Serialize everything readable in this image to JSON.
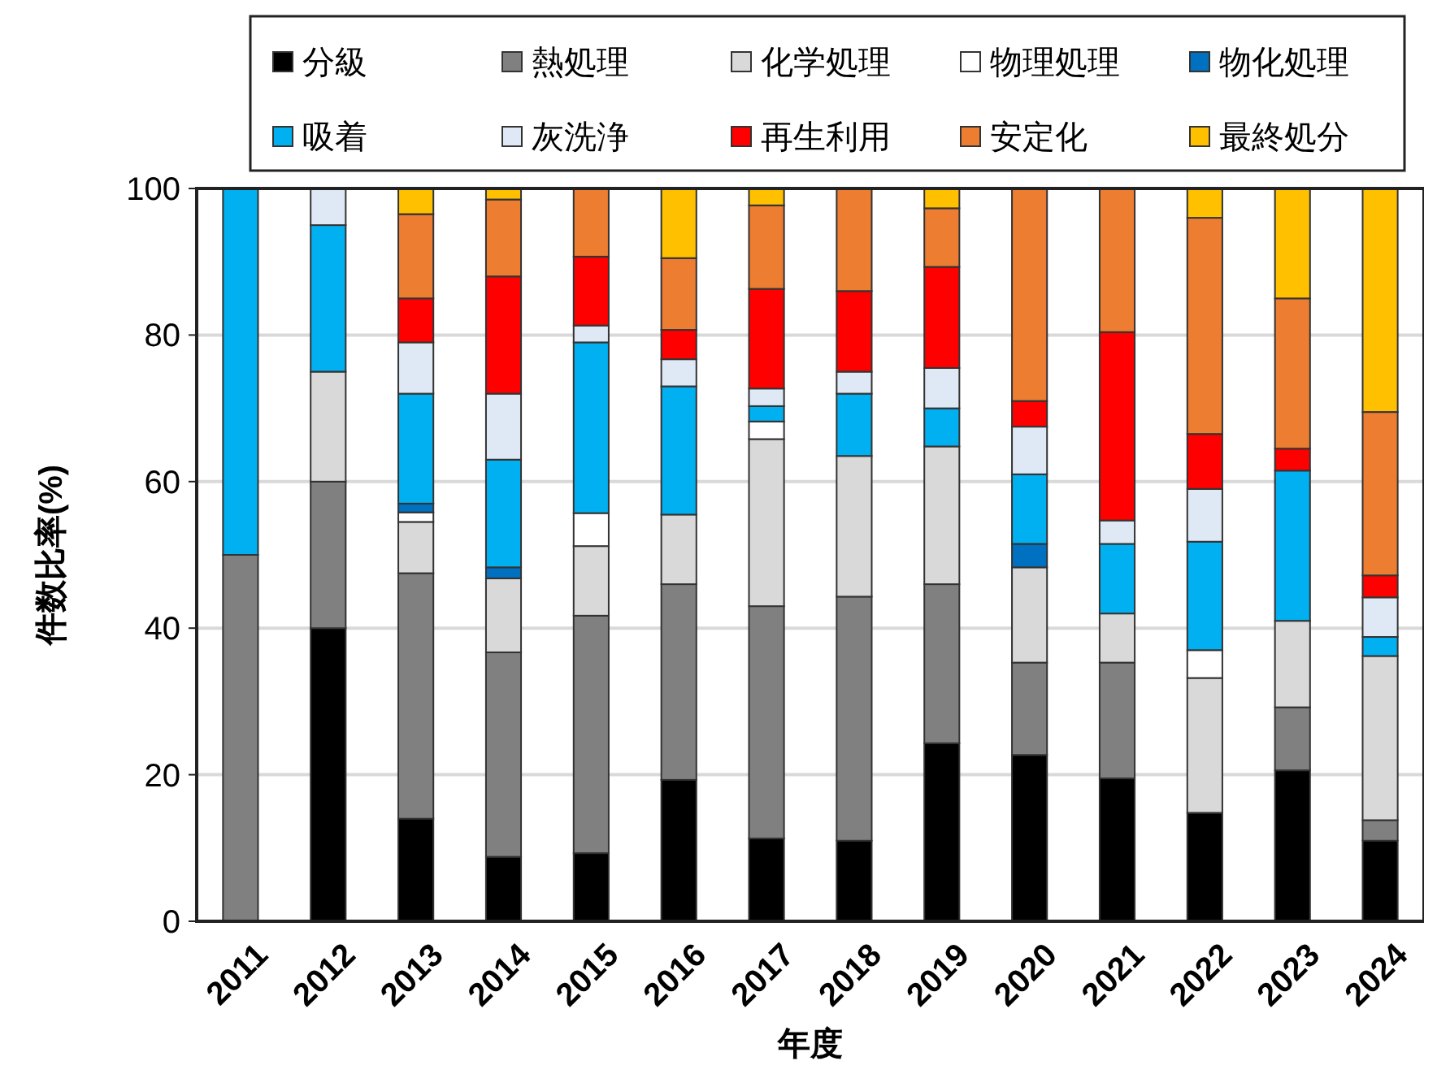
{
  "chart_data": {
    "type": "bar",
    "stacked": true,
    "xlabel": "年度",
    "ylabel": "件数比率(%)",
    "categories": [
      "2011",
      "2012",
      "2013",
      "2014",
      "2015",
      "2016",
      "2017",
      "2018",
      "2019",
      "2020",
      "2021",
      "2022",
      "2023",
      "2024"
    ],
    "series": [
      {
        "name": "分級",
        "color": "#000000",
        "values": [
          0,
          40,
          14,
          8.8,
          9.3,
          19.3,
          11.3,
          11,
          24.3,
          22.7,
          19.5,
          14.8,
          20.6,
          11
        ]
      },
      {
        "name": "熱処理",
        "color": "#808080",
        "values": [
          50,
          20,
          33.5,
          27.9,
          32.4,
          26.7,
          31.7,
          33.3,
          21.7,
          12.6,
          15.8,
          0,
          8.6,
          2.8
        ]
      },
      {
        "name": "化学処理",
        "color": "#d9d9d9",
        "values": [
          0,
          15,
          7,
          10.1,
          9.5,
          9.5,
          22.8,
          19.2,
          18.8,
          13,
          6.7,
          18.4,
          11.8,
          22.4
        ]
      },
      {
        "name": "物理処理",
        "color": "#ffffff",
        "values": [
          0,
          0,
          1.3,
          0,
          4.5,
          0,
          2.4,
          0,
          0,
          0,
          0,
          3.8,
          0,
          0
        ]
      },
      {
        "name": "物化処理",
        "color": "#0070c0",
        "values": [
          0,
          0,
          1.2,
          1.5,
          0,
          0,
          0,
          0,
          0,
          3.2,
          0,
          0,
          0,
          0
        ]
      },
      {
        "name": "吸着",
        "color": "#00b0f0",
        "values": [
          50,
          20,
          15,
          14.7,
          23.3,
          17.5,
          2.1,
          8.5,
          5.2,
          9.5,
          9.5,
          14.8,
          20.5,
          2.6
        ]
      },
      {
        "name": "灰洗浄",
        "color": "#dee9f5",
        "values": [
          0,
          5,
          7,
          9,
          2.3,
          3.7,
          2.4,
          3,
          5.5,
          6.5,
          3.2,
          7.2,
          0,
          5.4
        ]
      },
      {
        "name": "再生利用",
        "color": "#ff0000",
        "values": [
          0,
          0,
          6,
          16,
          9.4,
          4,
          13.6,
          11,
          13.8,
          3.5,
          25.7,
          7.5,
          3,
          3
        ]
      },
      {
        "name": "安定化",
        "color": "#ed7d31",
        "values": [
          0,
          0,
          11.5,
          10.5,
          9.3,
          9.8,
          11.4,
          14,
          8,
          29,
          19.6,
          29.5,
          20.5,
          22.3
        ]
      },
      {
        "name": "最終処分",
        "color": "#ffc000",
        "values": [
          0,
          0,
          3.5,
          1.5,
          0,
          9.5,
          2.3,
          0,
          2.7,
          0,
          0,
          4,
          15,
          30.5
        ]
      }
    ],
    "ylim": [
      0,
      100
    ],
    "yticks": [
      0,
      20,
      40,
      60,
      80,
      100
    ],
    "grid": "y",
    "legend": "top"
  }
}
